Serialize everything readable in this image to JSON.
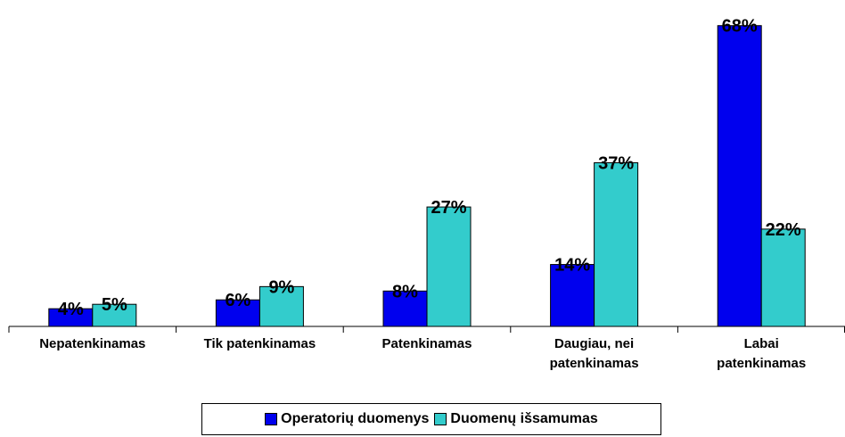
{
  "chart_data": {
    "type": "bar",
    "categories": [
      "Nepatenkinamas",
      "Tik patenkinamas",
      "Patenkinamas",
      "Daugiau, nei\npatenkinamas",
      "Labai\npatenkinamas"
    ],
    "series": [
      {
        "name": "Operatorių duomenys",
        "color": "#0000ee",
        "values": [
          4,
          6,
          8,
          14,
          68
        ],
        "value_labels": [
          "4%",
          "6%",
          "8%",
          "14%",
          "68%"
        ]
      },
      {
        "name": "Duomenų išsamumas",
        "color": "#33cccc",
        "values": [
          5,
          9,
          27,
          37,
          22
        ],
        "value_labels": [
          "5%",
          "9%",
          "27%",
          "37%",
          "22%"
        ]
      }
    ]
  }
}
